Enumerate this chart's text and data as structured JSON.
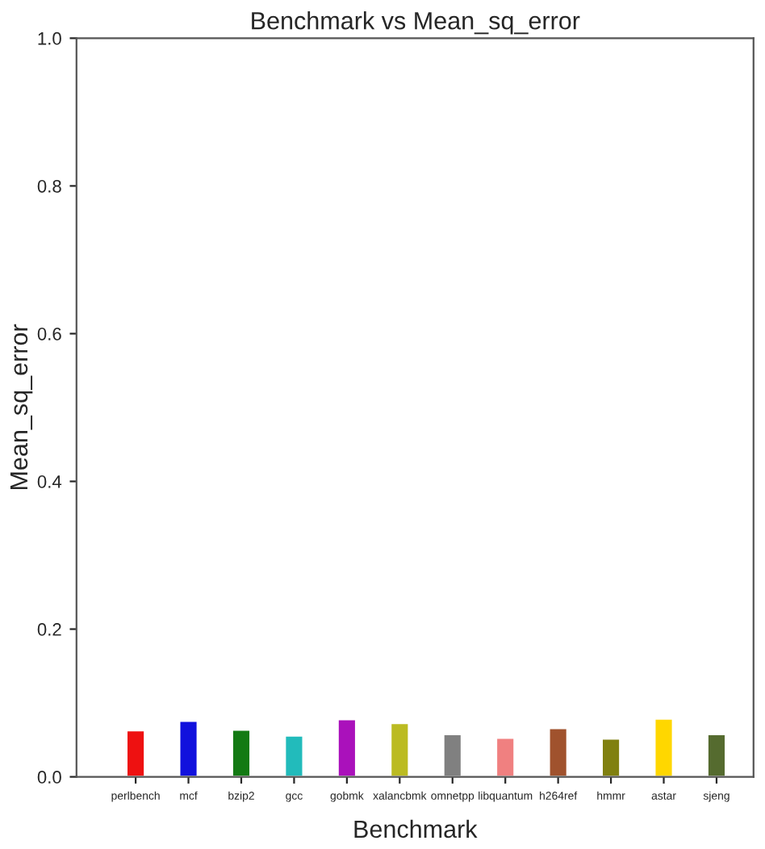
{
  "chart_data": {
    "type": "bar",
    "title": "Benchmark vs Mean_sq_error",
    "xlabel": "Benchmark",
    "ylabel": "Mean_sq_error",
    "categories": [
      "perlbench",
      "mcf",
      "bzip2",
      "gcc",
      "gobmk",
      "xalancbmk",
      "omnetpp",
      "libquantum",
      "h264ref",
      "hmmr",
      "astar",
      "sjeng"
    ],
    "values": [
      0.063,
      0.076,
      0.064,
      0.056,
      0.078,
      0.073,
      0.058,
      0.053,
      0.066,
      0.052,
      0.079,
      0.058
    ],
    "colors": [
      "#ee1111",
      "#1111dd",
      "#137a13",
      "#22bbbb",
      "#aa11bb",
      "#bbbb22",
      "#808080",
      "#f08080",
      "#a0522d",
      "#808010",
      "#ffd700",
      "#556b2f"
    ],
    "ylim": [
      0,
      1.0
    ],
    "yticks": [
      {
        "value": 0,
        "label": "0.0"
      },
      0.2,
      0.4,
      0.6,
      0.8,
      {
        "value": 1.0,
        "label": "1.0"
      }
    ],
    "grid": false,
    "legend": false
  }
}
